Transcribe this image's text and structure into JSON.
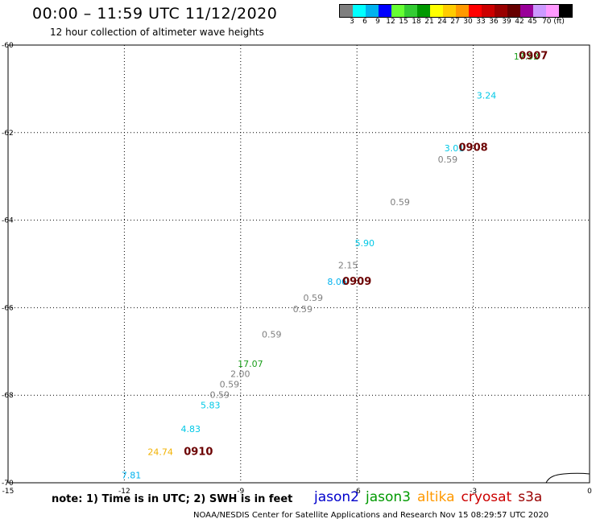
{
  "header": {
    "title": "00:00 – 11:59 UTC 11/12/2020",
    "subtitle": "12 hour collection of altimeter wave heights"
  },
  "legend": {
    "colors": [
      "#7f7f7f",
      "#00ffff",
      "#00b2ee",
      "#0000ff",
      "#66ff33",
      "#33cc33",
      "#009900",
      "#ffff00",
      "#ffcc00",
      "#ff9900",
      "#ff0000",
      "#cc0000",
      "#990000",
      "#660000",
      "#990099",
      "#cc99ff",
      "#ff99ff",
      "#000000"
    ],
    "labels": [
      "3",
      "6",
      "9",
      "12",
      "15",
      "18",
      "21",
      "24",
      "27",
      "30",
      "33",
      "36",
      "39",
      "42",
      "45",
      "70 (ft)"
    ]
  },
  "axes": {
    "x_ticks": [
      "-15",
      "-12",
      "-9",
      "-6",
      "-3",
      "0"
    ],
    "y_ticks": [
      "-60",
      "-62",
      "-64",
      "-66",
      "-68",
      "-70"
    ]
  },
  "chart_data": {
    "type": "scatter",
    "xlim": [
      -15,
      0
    ],
    "ylim": [
      -70,
      -60
    ],
    "points": [
      {
        "lon": -1.63,
        "lat": -60.33,
        "label": "17.92",
        "color": "#1a9e1a"
      },
      {
        "lon": -2.66,
        "lat": -61.22,
        "label": "3.24",
        "color": "#00c8e6"
      },
      {
        "lon": -3.49,
        "lat": -62.43,
        "label": "3.01",
        "color": "#00c8e6"
      },
      {
        "lon": -3.66,
        "lat": -62.68,
        "label": "0.59",
        "color": "#7f7f7f"
      },
      {
        "lon": -4.89,
        "lat": -63.66,
        "label": "0.59",
        "color": "#7f7f7f"
      },
      {
        "lon": -5.8,
        "lat": -64.6,
        "label": "5.90",
        "color": "#00c8e6"
      },
      {
        "lon": -6.23,
        "lat": -65.1,
        "label": "2.15",
        "color": "#7f7f7f"
      },
      {
        "lon": -6.51,
        "lat": -65.48,
        "label": "8.06",
        "color": "#00b2ee"
      },
      {
        "lon": -7.13,
        "lat": -65.85,
        "label": "0.59",
        "color": "#7f7f7f"
      },
      {
        "lon": -7.4,
        "lat": -66.1,
        "label": "0.59",
        "color": "#7f7f7f"
      },
      {
        "lon": -8.2,
        "lat": -66.68,
        "label": "0.59",
        "color": "#7f7f7f"
      },
      {
        "lon": -8.75,
        "lat": -67.35,
        "label": "17.07",
        "color": "#1a9e1a"
      },
      {
        "lon": -9.01,
        "lat": -67.58,
        "label": "2.00",
        "color": "#7f7f7f"
      },
      {
        "lon": -9.29,
        "lat": -67.82,
        "label": "0.59",
        "color": "#7f7f7f"
      },
      {
        "lon": -9.54,
        "lat": -68.06,
        "label": "0.59",
        "color": "#7f7f7f"
      },
      {
        "lon": -9.78,
        "lat": -68.3,
        "label": "5.83",
        "color": "#00c8e6"
      },
      {
        "lon": -10.29,
        "lat": -68.84,
        "label": "4.83",
        "color": "#00c8e6"
      },
      {
        "lon": -11.07,
        "lat": -69.37,
        "label": "24.74",
        "color": "#f2b200"
      },
      {
        "lon": -11.82,
        "lat": -69.9,
        "label": "7.81",
        "color": "#00b2ee"
      }
    ],
    "pass_labels": [
      {
        "lon": -1.45,
        "lat": -60.32,
        "label": "0907"
      },
      {
        "lon": -3.0,
        "lat": -62.42,
        "label": "0908"
      },
      {
        "lon": -6.0,
        "lat": -65.48,
        "label": "0909"
      },
      {
        "lon": -10.09,
        "lat": -69.37,
        "label": "0910"
      }
    ]
  },
  "footer": {
    "note": "note: 1) Time is in UTC; 2) SWH is in feet",
    "satellites": [
      {
        "name": "jason2",
        "color": "#0000cc"
      },
      {
        "name": "jason3",
        "color": "#009900"
      },
      {
        "name": "altika",
        "color": "#ff9900"
      },
      {
        "name": "cryosat",
        "color": "#cc0000"
      },
      {
        "name": "s3a",
        "color": "#990000"
      }
    ],
    "credit": "NOAA/NESDIS Center for Satellite Applications and Research    Nov 15 08:29:57 UTC 2020"
  }
}
